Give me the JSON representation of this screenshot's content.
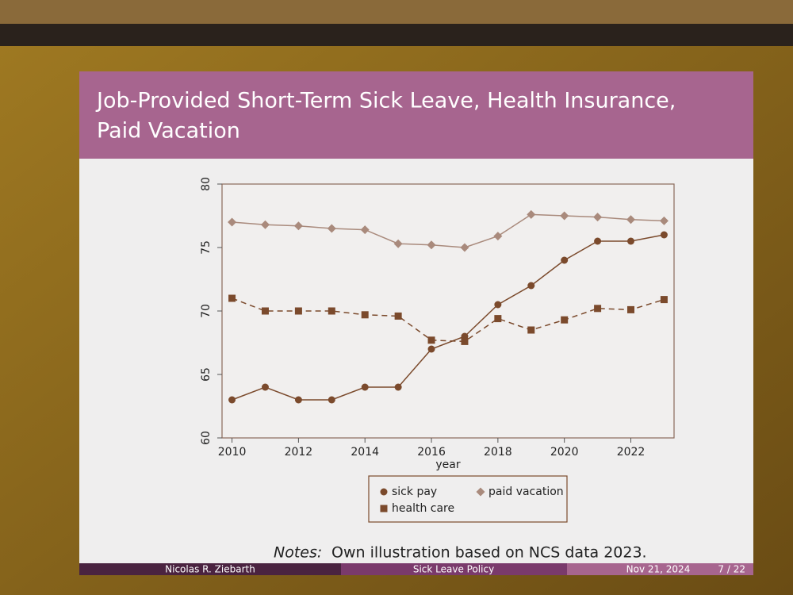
{
  "slide": {
    "title": [
      "Job-Provided Short-Term Sick Leave, Health Insurance,",
      "Paid Vacation"
    ],
    "notes_label": "Notes:",
    "notes": "Own illustration based on NCS data 2023.",
    "footer": {
      "author": "Nicolas R. Ziebarth",
      "short_title": "Sick Leave Policy",
      "date": "Nov 21, 2024",
      "page": "7 / 22"
    }
  },
  "chart_data": {
    "type": "line",
    "xlabel": "year",
    "x": [
      2010,
      2011,
      2012,
      2013,
      2014,
      2015,
      2016,
      2017,
      2018,
      2019,
      2020,
      2021,
      2022,
      2023
    ],
    "series": [
      {
        "name": "sick pay",
        "color": "#7b4a2c",
        "marker": "circle",
        "dash": false,
        "values": [
          63,
          64,
          63,
          63,
          64,
          64,
          67,
          68,
          70.5,
          72,
          74,
          75.5,
          75.5,
          76
        ]
      },
      {
        "name": "health care",
        "color": "#7b4a2c",
        "marker": "square",
        "dash": true,
        "values": [
          71,
          70,
          70,
          70,
          69.7,
          69.6,
          67.7,
          67.6,
          69.4,
          68.5,
          69.3,
          70.2,
          70.1,
          70.9
        ]
      },
      {
        "name": "paid vacation",
        "color": "#a98a7c",
        "marker": "diamond",
        "dash": false,
        "values": [
          77,
          76.8,
          76.7,
          76.5,
          76.4,
          75.3,
          75.2,
          75,
          75.9,
          77.6,
          77.5,
          77.4,
          77.2,
          77.1
        ]
      }
    ],
    "xlim": [
      2009.7,
      2023.3
    ],
    "xticks": [
      2010,
      2012,
      2014,
      2016,
      2018,
      2020,
      2022
    ],
    "ylim": [
      60,
      80
    ],
    "yticks": [
      60,
      65,
      70,
      75,
      80
    ]
  }
}
